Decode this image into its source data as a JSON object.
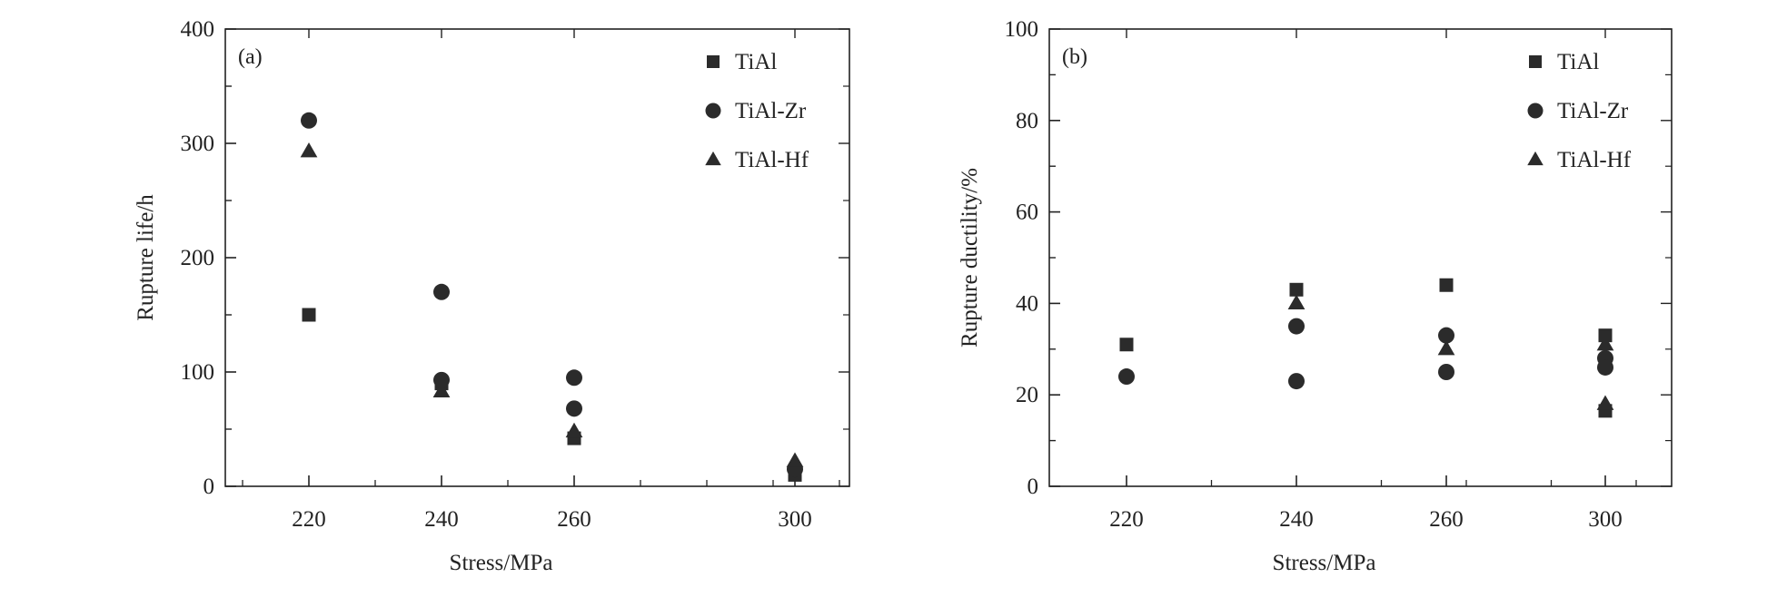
{
  "colors": {
    "marker": "#2b2b2b",
    "axis": "#222222",
    "background": "#ffffff"
  },
  "chart_data": [
    {
      "type": "scatter",
      "panel_label": "(a)",
      "xlabel": "Stress/MPa",
      "ylabel": "Rupture life/h",
      "categories": [
        "220",
        "240",
        "260",
        "300"
      ],
      "ylim": [
        0,
        400
      ],
      "yticks": [
        0,
        100,
        200,
        300,
        400
      ],
      "legend_position": "top-right",
      "grid": false,
      "series": [
        {
          "name": "TiAl",
          "marker": "square",
          "points": [
            [
              0,
              150
            ],
            [
              1,
              90
            ],
            [
              2,
              42
            ],
            [
              3,
              10
            ]
          ]
        },
        {
          "name": "TiAl-Zr",
          "marker": "circle",
          "points": [
            [
              0,
              320
            ],
            [
              1,
              170
            ],
            [
              1,
              93
            ],
            [
              2,
              95
            ],
            [
              2,
              68
            ],
            [
              3,
              15
            ]
          ]
        },
        {
          "name": "TiAl-Hf",
          "marker": "triangle",
          "points": [
            [
              0,
              293
            ],
            [
              1,
              83
            ],
            [
              2,
              48
            ],
            [
              3,
              22
            ]
          ]
        }
      ]
    },
    {
      "type": "scatter",
      "panel_label": "(b)",
      "xlabel": "Stress/MPa",
      "ylabel": "Rupture ductility/%",
      "categories": [
        "220",
        "240",
        "260",
        "300"
      ],
      "ylim": [
        0,
        100
      ],
      "yticks": [
        0,
        20,
        40,
        60,
        80,
        100
      ],
      "legend_position": "top-right",
      "grid": false,
      "series": [
        {
          "name": "TiAl",
          "marker": "square",
          "points": [
            [
              0,
              31
            ],
            [
              1,
              43
            ],
            [
              2,
              44
            ],
            [
              3,
              33
            ],
            [
              3,
              16.5
            ]
          ]
        },
        {
          "name": "TiAl-Zr",
          "marker": "circle",
          "points": [
            [
              0,
              24
            ],
            [
              1,
              35
            ],
            [
              1,
              23
            ],
            [
              2,
              33
            ],
            [
              2,
              25
            ],
            [
              3,
              28
            ],
            [
              3,
              26
            ]
          ]
        },
        {
          "name": "TiAl-Hf",
          "marker": "triangle",
          "points": [
            [
              1,
              40
            ],
            [
              2,
              30
            ],
            [
              3,
              31
            ],
            [
              3,
              18
            ]
          ]
        }
      ]
    }
  ]
}
